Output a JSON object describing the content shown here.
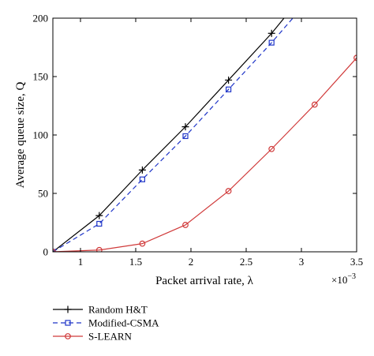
{
  "chart_data": {
    "type": "line",
    "xlabel": "Packet arrival rate, λ",
    "ylabel": "Average queue size, Q",
    "x_multiplier": "×10",
    "x_multiplier_exp": "−3",
    "xlim": [
      0.75,
      3.5
    ],
    "ylim": [
      0,
      200
    ],
    "xticks": [
      1,
      1.5,
      2,
      2.5,
      3,
      3.5
    ],
    "xtick_labels": [
      "1",
      "1.5",
      "2",
      "2.5",
      "3",
      "3.5"
    ],
    "yticks": [
      0,
      50,
      100,
      150,
      200
    ],
    "ytick_labels": [
      "0",
      "50",
      "100",
      "150",
      "200"
    ],
    "grid": false,
    "legend_position": "below",
    "series": [
      {
        "name": "Random H&T",
        "color": "#000000",
        "dash": "solid",
        "marker": "plus",
        "x": [
          0.75,
          1.17,
          1.56,
          1.95,
          2.34,
          2.73,
          3.05
        ],
        "y": [
          0,
          31,
          70,
          107,
          147,
          187,
          224
        ]
      },
      {
        "name": "Modified-CSMA",
        "color": "#1f35c8",
        "dash": "dashed",
        "marker": "square",
        "x": [
          0.75,
          1.17,
          1.56,
          1.95,
          2.34,
          2.73,
          3.05
        ],
        "y": [
          0,
          24,
          62,
          99,
          139,
          179,
          214
        ]
      },
      {
        "name": "S-LEARN",
        "color": "#d03a3a",
        "dash": "solid",
        "marker": "circle",
        "x": [
          0.75,
          1.17,
          1.56,
          1.95,
          2.34,
          2.73,
          3.12,
          3.5
        ],
        "y": [
          0,
          1.5,
          7,
          23,
          52,
          88,
          126,
          166
        ]
      }
    ]
  }
}
